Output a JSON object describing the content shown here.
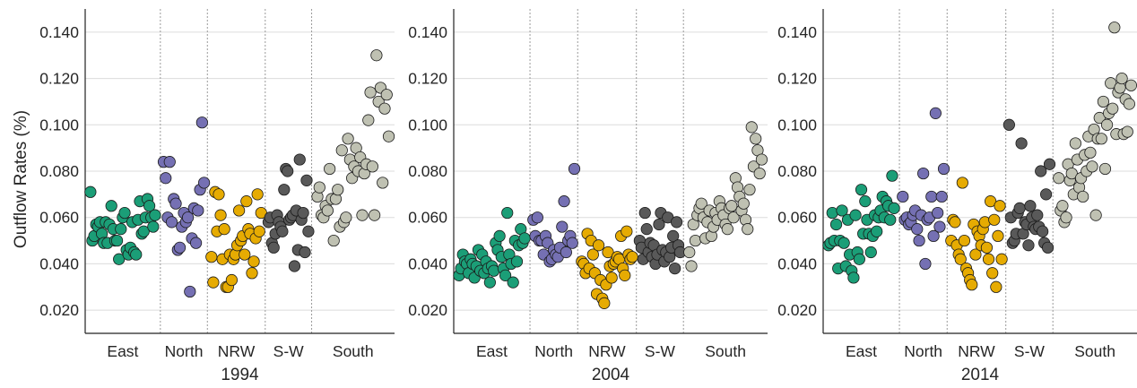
{
  "figure": {
    "ylabel": "Outflow Rates (%)",
    "ylim": [
      0.01,
      0.15
    ],
    "yticks": [
      0.02,
      0.04,
      0.06,
      0.08,
      0.1,
      0.12,
      0.14
    ],
    "ytick_labels": [
      "0.020",
      "0.040",
      "0.060",
      "0.080",
      "0.100",
      "0.120",
      "0.140"
    ],
    "grid": "horizontal",
    "region_colors": {
      "East": "#1b9e77",
      "North": "#7570b3",
      "NRW": "#e6ab02",
      "S-W": "#595959",
      "South": "#bfc1b2"
    },
    "regions": [
      "East",
      "North",
      "NRW",
      "S-W",
      "South"
    ]
  },
  "chart_data": [
    {
      "type": "scatter",
      "title": "",
      "xlabel": "1994",
      "ylabel": "Outflow Rates (%)",
      "ylim": [
        0.01,
        0.15
      ],
      "series": [
        {
          "name": "East",
          "color": "#1b9e77",
          "values": [
            0.071,
            0.05,
            0.052,
            0.057,
            0.056,
            0.058,
            0.053,
            0.049,
            0.058,
            0.049,
            0.057,
            0.065,
            0.055,
            0.05,
            0.05,
            0.042,
            0.055,
            0.06,
            0.062,
            0.046,
            0.044,
            0.047,
            0.058,
            0.045,
            0.044,
            0.059,
            0.067,
            0.053,
            0.054,
            0.06,
            0.068,
            0.065,
            0.06,
            0.056,
            0.061
          ]
        },
        {
          "name": "North",
          "color": "#7570b3",
          "values": [
            0.084,
            0.077,
            0.06,
            0.084,
            0.058,
            0.068,
            0.066,
            0.046,
            0.047,
            0.056,
            0.062,
            0.058,
            0.06,
            0.028,
            0.051,
            0.064,
            0.049,
            0.063,
            0.072,
            0.101,
            0.075
          ]
        },
        {
          "name": "NRW",
          "color": "#e6ab02",
          "values": [
            0.043,
            0.032,
            0.071,
            0.054,
            0.07,
            0.061,
            0.042,
            0.055,
            0.03,
            0.03,
            0.044,
            0.033,
            0.042,
            0.044,
            0.048,
            0.063,
            0.05,
            0.052,
            0.044,
            0.067,
            0.055,
            0.053,
            0.036,
            0.041,
            0.051,
            0.07,
            0.054,
            0.062
          ]
        },
        {
          "name": "S-W",
          "color": "#595959",
          "values": [
            0.058,
            0.06,
            0.049,
            0.047,
            0.053,
            0.061,
            0.058,
            0.056,
            0.054,
            0.072,
            0.081,
            0.08,
            0.059,
            0.06,
            0.061,
            0.039,
            0.063,
            0.046,
            0.085,
            0.059,
            0.062,
            0.045,
            0.076,
            0.054
          ]
        },
        {
          "name": "South",
          "color": "#bfc1b2",
          "values": [
            0.069,
            0.073,
            0.061,
            0.06,
            0.065,
            0.063,
            0.081,
            0.068,
            0.05,
            0.068,
            0.072,
            0.056,
            0.089,
            0.058,
            0.06,
            0.094,
            0.085,
            0.077,
            0.082,
            0.09,
            0.08,
            0.086,
            0.061,
            0.079,
            0.083,
            0.102,
            0.114,
            0.082,
            0.061,
            0.13,
            0.11,
            0.116,
            0.075,
            0.107,
            0.113,
            0.095
          ]
        }
      ]
    },
    {
      "type": "scatter",
      "title": "",
      "xlabel": "2004",
      "ylabel": "",
      "ylim": [
        0.01,
        0.15
      ],
      "series": [
        {
          "name": "East",
          "color": "#1b9e77",
          "values": [
            0.035,
            0.038,
            0.044,
            0.041,
            0.04,
            0.036,
            0.042,
            0.04,
            0.034,
            0.039,
            0.046,
            0.037,
            0.044,
            0.036,
            0.041,
            0.038,
            0.032,
            0.039,
            0.037,
            0.049,
            0.046,
            0.052,
            0.043,
            0.038,
            0.035,
            0.062,
            0.044,
            0.04,
            0.032,
            0.05,
            0.041,
            0.048,
            0.055,
            0.049,
            0.051
          ]
        },
        {
          "name": "North",
          "color": "#7570b3",
          "values": [
            0.059,
            0.052,
            0.06,
            0.05,
            0.05,
            0.044,
            0.052,
            0.049,
            0.041,
            0.042,
            0.046,
            0.044,
            0.043,
            0.047,
            0.056,
            0.067,
            0.045,
            0.05,
            0.052,
            0.049,
            0.081
          ]
        },
        {
          "name": "NRW",
          "color": "#e6ab02",
          "values": [
            0.041,
            0.04,
            0.036,
            0.053,
            0.038,
            0.05,
            0.044,
            0.036,
            0.027,
            0.048,
            0.033,
            0.025,
            0.023,
            0.031,
            0.045,
            0.039,
            0.034,
            0.04,
            0.041,
            0.043,
            0.042,
            0.052,
            0.038,
            0.035,
            0.054,
            0.044,
            0.042,
            0.043
          ]
        },
        {
          "name": "S-W",
          "color": "#595959",
          "values": [
            0.05,
            0.047,
            0.042,
            0.062,
            0.055,
            0.045,
            0.049,
            0.043,
            0.048,
            0.04,
            0.044,
            0.057,
            0.062,
            0.046,
            0.041,
            0.045,
            0.06,
            0.043,
            0.047,
            0.052,
            0.038,
            0.058,
            0.048,
            0.045
          ]
        },
        {
          "name": "South",
          "color": "#bfc1b2",
          "values": [
            0.045,
            0.039,
            0.057,
            0.05,
            0.061,
            0.064,
            0.066,
            0.06,
            0.051,
            0.058,
            0.063,
            0.052,
            0.056,
            0.062,
            0.059,
            0.067,
            0.064,
            0.061,
            0.057,
            0.055,
            0.064,
            0.065,
            0.06,
            0.077,
            0.073,
            0.069,
            0.063,
            0.066,
            0.059,
            0.055,
            0.072,
            0.099,
            0.082,
            0.094,
            0.089,
            0.079,
            0.085
          ]
        }
      ]
    },
    {
      "type": "scatter",
      "title": "",
      "xlabel": "2014",
      "ylabel": "",
      "ylim": [
        0.01,
        0.15
      ],
      "series": [
        {
          "name": "East",
          "color": "#1b9e77",
          "values": [
            0.048,
            0.049,
            0.062,
            0.05,
            0.057,
            0.038,
            0.05,
            0.063,
            0.049,
            0.039,
            0.059,
            0.044,
            0.037,
            0.034,
            0.061,
            0.045,
            0.042,
            0.072,
            0.053,
            0.067,
            0.059,
            0.053,
            0.045,
            0.052,
            0.061,
            0.054,
            0.06,
            0.063,
            0.069,
            0.06,
            0.067,
            0.065,
            0.059,
            0.078,
            0.064
          ]
        },
        {
          "name": "North",
          "color": "#7570b3",
          "values": [
            0.069,
            0.059,
            0.06,
            0.057,
            0.058,
            0.061,
            0.063,
            0.055,
            0.05,
            0.061,
            0.079,
            0.04,
            0.059,
            0.06,
            0.069,
            0.052,
            0.105,
            0.062,
            0.056,
            0.069,
            0.081
          ]
        },
        {
          "name": "NRW",
          "color": "#e6ab02",
          "values": [
            0.05,
            0.059,
            0.058,
            0.048,
            0.044,
            0.042,
            0.075,
            0.05,
            0.038,
            0.036,
            0.033,
            0.031,
            0.057,
            0.044,
            0.054,
            0.052,
            0.048,
            0.055,
            0.058,
            0.047,
            0.042,
            0.067,
            0.036,
            0.059,
            0.03,
            0.052,
            0.065,
            0.042
          ]
        },
        {
          "name": "S-W",
          "color": "#595959",
          "values": [
            0.1,
            0.06,
            0.049,
            0.05,
            0.053,
            0.062,
            0.064,
            0.092,
            0.053,
            0.058,
            0.057,
            0.048,
            0.065,
            0.06,
            0.056,
            0.055,
            0.061,
            0.056,
            0.08,
            0.054,
            0.049,
            0.07,
            0.047,
            0.083
          ]
        },
        {
          "name": "South",
          "color": "#bfc1b2",
          "values": [
            0.077,
            0.063,
            0.065,
            0.058,
            0.06,
            0.083,
            0.076,
            0.079,
            0.07,
            0.092,
            0.085,
            0.073,
            0.077,
            0.069,
            0.087,
            0.08,
            0.095,
            0.088,
            0.082,
            0.098,
            0.061,
            0.094,
            0.103,
            0.094,
            0.11,
            0.081,
            0.1,
            0.105,
            0.118,
            0.107,
            0.142,
            0.096,
            0.114,
            0.116,
            0.12,
            0.096,
            0.111,
            0.097,
            0.109,
            0.117
          ]
        }
      ]
    }
  ]
}
